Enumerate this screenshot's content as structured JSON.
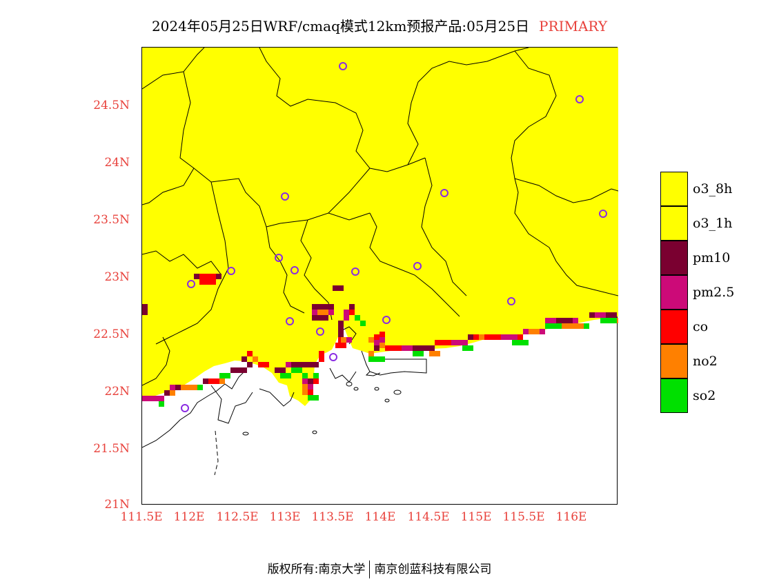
{
  "title": {
    "main": "2024年05月25日WRF/cmaq模式12km预报产品:05月25日",
    "mode": "PRIMARY"
  },
  "map": {
    "background_color": "#ffff00",
    "boundary_color": "#000000",
    "station_marker_color": "#8a2be2",
    "y_ticks": [
      "24.5N",
      "24N",
      "23.5N",
      "23N",
      "22.5N",
      "22N",
      "21.5N",
      "21N"
    ],
    "x_ticks": [
      "111.5E",
      "112E",
      "112.5E",
      "113E",
      "113.5E",
      "114E",
      "114.5E",
      "115E",
      "115.5E",
      "116E"
    ],
    "tick_color": "#e8413b"
  },
  "legend": {
    "items": [
      {
        "label": "o3_8h",
        "color": "#ffff00"
      },
      {
        "label": "o3_1h",
        "color": "#ffff00"
      },
      {
        "label": "pm10",
        "color": "#7a0030"
      },
      {
        "label": "pm2.5",
        "color": "#cc0a78"
      },
      {
        "label": "co",
        "color": "#ff0000"
      },
      {
        "label": "no2",
        "color": "#ff8000"
      },
      {
        "label": "so2",
        "color": "#00e000"
      }
    ]
  },
  "footer": {
    "left": "版权所有:南京大学",
    "right": "南京创蓝科技有限公司"
  }
}
